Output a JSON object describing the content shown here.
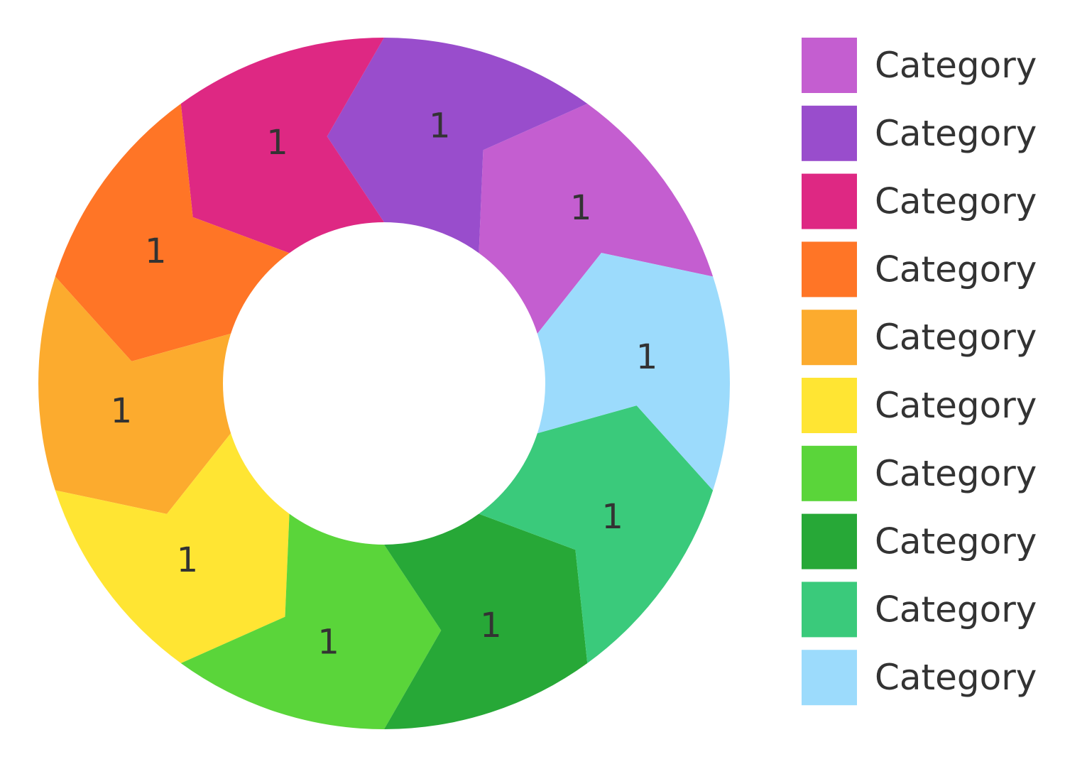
{
  "chart_data": {
    "type": "pie",
    "donut": true,
    "legend_position": "right",
    "slices": [
      {
        "label": "Category",
        "value": 1,
        "color": "#C45ED0"
      },
      {
        "label": "Category",
        "value": 1,
        "color": "#994DCC"
      },
      {
        "label": "Category",
        "value": 1,
        "color": "#DE2883"
      },
      {
        "label": "Category",
        "value": 1,
        "color": "#FF7526"
      },
      {
        "label": "Category",
        "value": 1,
        "color": "#FCAB2E"
      },
      {
        "label": "Category",
        "value": 1,
        "color": "#FFE533"
      },
      {
        "label": "Category",
        "value": 1,
        "color": "#5AD53A"
      },
      {
        "label": "Category",
        "value": 1,
        "color": "#27A837"
      },
      {
        "label": "Category",
        "value": 1,
        "color": "#3ACA7B"
      },
      {
        "label": "Category",
        "value": 1,
        "color": "#9CDBFC"
      }
    ]
  }
}
